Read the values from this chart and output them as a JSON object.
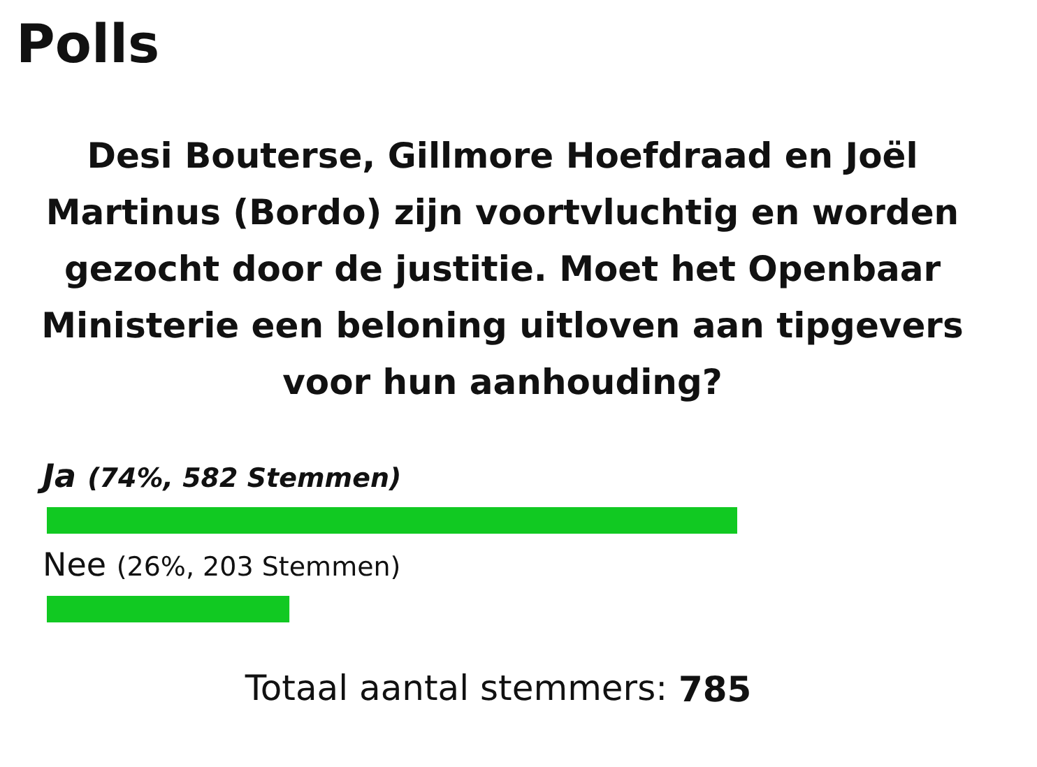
{
  "chart_data": {
    "type": "bar",
    "orientation": "horizontal",
    "title": "Polls",
    "subtitle": "Desi Bouterse, Gillmore Hoefdraad en Joël Martinus (Bordo) zijn voortvluchtig en worden gezocht door de justitie. Moet het Openbaar Ministerie een beloning uitloven aan tipgevers voor hun aanhouding?",
    "categories": [
      "Ja",
      "Nee"
    ],
    "values": [
      74,
      26
    ],
    "value_labels": [
      "(74%, 582 Stemmen)",
      "(26%, 203 Stemmen)"
    ],
    "color": "#11c922",
    "annotations": [
      "Totaal aantal stemmers: 785"
    ]
  }
}
